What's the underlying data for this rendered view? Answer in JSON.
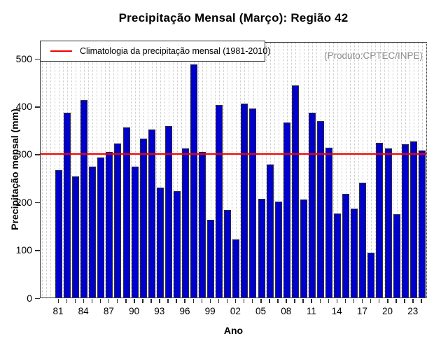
{
  "title": "Precipitação Mensal (Março): Região 42",
  "watermark": "(Produto:CPTEC/INPE)",
  "legend": {
    "label": "Climatologia da precipitação mensal (1981-2010)"
  },
  "axes": {
    "x_label": "Ano",
    "y_label": "Precipitação mensal (mm)"
  },
  "chart_data": {
    "type": "bar",
    "title": "Precipitação Mensal (Março): Região 42",
    "xlabel": "Ano",
    "ylabel": "Precipitação mensal (mm)",
    "categories": [
      1981,
      1982,
      1983,
      1984,
      1985,
      1986,
      1987,
      1988,
      1989,
      1990,
      1991,
      1992,
      1993,
      1994,
      1995,
      1996,
      1997,
      1998,
      1999,
      2000,
      2001,
      2002,
      2003,
      2004,
      2005,
      2006,
      2007,
      2008,
      2009,
      2010,
      2011,
      2012,
      2013,
      2014,
      2015,
      2016,
      2017,
      2018,
      2019,
      2020,
      2021,
      2022,
      2023,
      2024
    ],
    "values": [
      267,
      386,
      253,
      413,
      273,
      293,
      304,
      322,
      355,
      273,
      332,
      351,
      230,
      358,
      222,
      311,
      488,
      305,
      162,
      402,
      183,
      121,
      406,
      395,
      207,
      278,
      200,
      366,
      444,
      205,
      387,
      369,
      313,
      175,
      216,
      186,
      240,
      94,
      324,
      312,
      174,
      321,
      326,
      308
    ],
    "yticks": [
      0,
      100,
      200,
      300,
      400,
      500
    ],
    "ylim": [
      0,
      535
    ],
    "x_tick_labels_shown": [
      "81",
      "84",
      "87",
      "90",
      "93",
      "96",
      "99",
      "02",
      "05",
      "08",
      "11",
      "14",
      "17",
      "20",
      "23"
    ],
    "x_tick_label_every": 3,
    "grid": "vertical-dotted",
    "legend_position": "top-left",
    "climatology": {
      "label": "Climatologia da precipitação mensal (1981-2010)",
      "value": 303,
      "color": "#FF0000"
    },
    "bar_color": "#0000CD",
    "watermark": "(Produto:CPTEC/INPE)"
  }
}
